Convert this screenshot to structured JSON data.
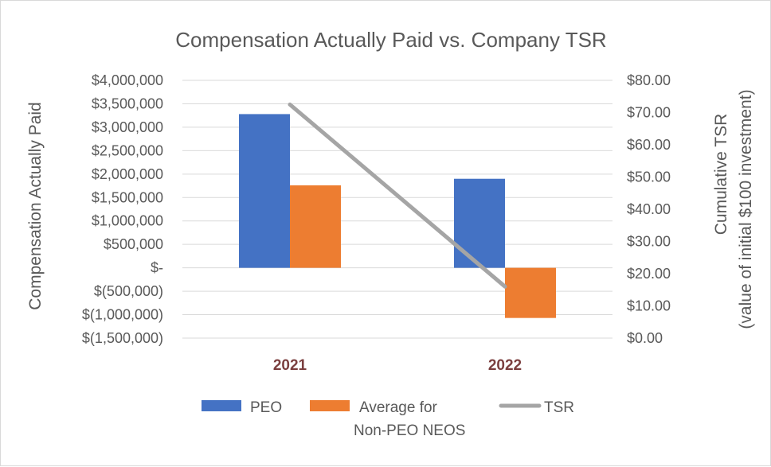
{
  "chart_data": {
    "type": "bar",
    "title": "Compensation Actually Paid vs. Company TSR",
    "categories": [
      "2021",
      "2022"
    ],
    "category_label_color": "#7b3f3f",
    "series": [
      {
        "name": "PEO",
        "type": "bar",
        "axis": "left",
        "color": "#4472c4",
        "values": [
          3280000,
          1900000
        ]
      },
      {
        "name": "Average for Non-PEO NEOS",
        "legend_lines": [
          "Average for",
          "Non-PEO NEOS"
        ],
        "type": "bar",
        "axis": "left",
        "color": "#ed7d31",
        "values": [
          1760000,
          -1070000
        ]
      },
      {
        "name": "TSR",
        "type": "line",
        "axis": "right",
        "color": "#a5a5a5",
        "values": [
          72.5,
          16.0
        ]
      }
    ],
    "ylabel_left": "Compensation Actually Paid",
    "ylabel_right": [
      "Cumulative TSR",
      "(value of initial $100 investment)"
    ],
    "ylim_left": [
      -1500000,
      4000000
    ],
    "ylim_right": [
      0,
      80
    ],
    "yticks_left": [
      {
        "value": 4000000,
        "label": "$4,000,000"
      },
      {
        "value": 3500000,
        "label": "$3,500,000"
      },
      {
        "value": 3000000,
        "label": "$3,000,000"
      },
      {
        "value": 2500000,
        "label": "$2,500,000"
      },
      {
        "value": 2000000,
        "label": "$2,000,000"
      },
      {
        "value": 1500000,
        "label": "$1,500,000"
      },
      {
        "value": 1000000,
        "label": "$1,000,000"
      },
      {
        "value": 500000,
        "label": "$500,000"
      },
      {
        "value": 0,
        "label": "$-"
      },
      {
        "value": -500000,
        "label": "$(500,000)"
      },
      {
        "value": -1000000,
        "label": "$(1,000,000)"
      },
      {
        "value": -1500000,
        "label": "$(1,500,000)"
      }
    ],
    "yticks_right": [
      {
        "value": 80,
        "label": "$80.00"
      },
      {
        "value": 70,
        "label": "$70.00"
      },
      {
        "value": 60,
        "label": "$60.00"
      },
      {
        "value": 50,
        "label": "$50.00"
      },
      {
        "value": 40,
        "label": "$40.00"
      },
      {
        "value": 30,
        "label": "$30.00"
      },
      {
        "value": 20,
        "label": "$20.00"
      },
      {
        "value": 10,
        "label": "$10.00"
      },
      {
        "value": 0,
        "label": "$0.00"
      }
    ],
    "grid": true,
    "legend_position": "bottom"
  }
}
